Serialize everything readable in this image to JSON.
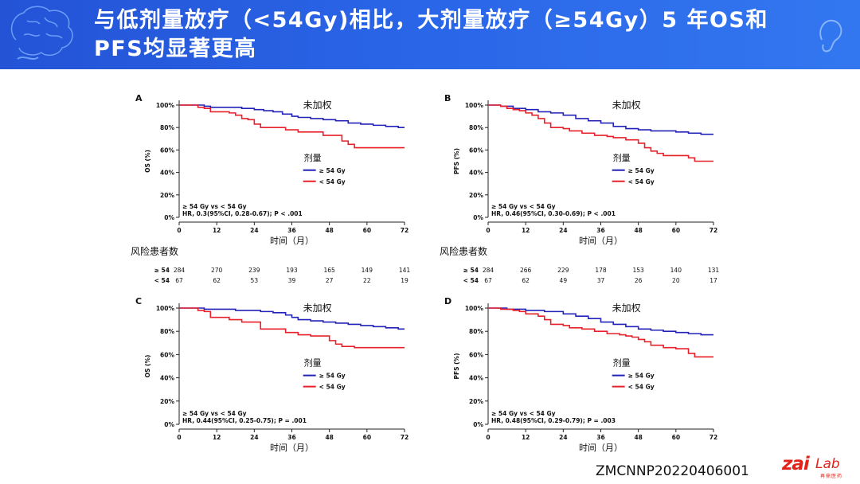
{
  "header": {
    "title_line1": "与低剂量放疗（<54Gy)相比，大剂量放疗（≥54Gy）5 年OS和",
    "title_line2": "PFS均显著更高"
  },
  "footer": {
    "code": "ZMCNNP20220406001",
    "logo_main": "zai",
    "logo_lab": "Lab",
    "logo_sub": "再鼎医药"
  },
  "colors": {
    "high_dose": "#2222b8",
    "low_dose": "#e8202a",
    "header_bg": "#2a5fe0"
  },
  "chart_data": [
    {
      "type": "line",
      "panel_label": "A",
      "weighting": "未加权",
      "ylabel": "OS (%)",
      "xlabel": "时间（月）",
      "yticks": [
        "0%",
        "20%",
        "40%",
        "60%",
        "80%",
        "100%"
      ],
      "xticks": [
        "0",
        "12",
        "24",
        "36",
        "48",
        "60",
        "72"
      ],
      "xlim": [
        0,
        72
      ],
      "ylim": [
        0,
        100
      ],
      "legend_title": "剂量",
      "series": [
        {
          "name": "≥ 54 Gy",
          "x": [
            0,
            5,
            8,
            10,
            14,
            20,
            24,
            27,
            30,
            33,
            36,
            38,
            42,
            46,
            50,
            54,
            58,
            62,
            66,
            70,
            72
          ],
          "y": [
            100,
            100,
            99,
            98,
            98,
            97,
            96,
            95,
            94,
            92,
            90,
            89,
            88,
            87,
            86,
            84,
            83,
            82,
            81,
            80,
            80
          ]
        },
        {
          "name": "< 54 Gy",
          "x": [
            0,
            4,
            6,
            8,
            10,
            12,
            16,
            18,
            20,
            22,
            24,
            26,
            30,
            34,
            38,
            42,
            46,
            48,
            50,
            52,
            54,
            56,
            60,
            72
          ],
          "y": [
            100,
            100,
            98,
            97,
            94,
            94,
            93,
            91,
            88,
            87,
            83,
            80,
            80,
            78,
            76,
            76,
            73,
            73,
            73,
            68,
            65,
            62,
            62,
            62
          ]
        }
      ],
      "annotation_line1": "≥ 54 Gy vs < 54 Gy",
      "annotation_line2": "HR, 0.3(95%CI, 0.28-0.67); P < .001",
      "risk_table": {
        "title": "风险患者数",
        "rows": [
          {
            "label": "≥ 54",
            "values": [
              "284",
              "270",
              "239",
              "193",
              "165",
              "149",
              "141"
            ]
          },
          {
            "label": "< 54",
            "values": [
              "67",
              "62",
              "53",
              "39",
              "27",
              "22",
              "19"
            ]
          }
        ]
      }
    },
    {
      "type": "line",
      "panel_label": "B",
      "weighting": "未加权",
      "ylabel": "PFS (%)",
      "xlabel": "时间（月）",
      "yticks": [
        "0%",
        "20%",
        "40%",
        "60%",
        "80%",
        "100%"
      ],
      "xticks": [
        "0",
        "12",
        "24",
        "36",
        "48",
        "60",
        "72"
      ],
      "xlim": [
        0,
        72
      ],
      "ylim": [
        0,
        100
      ],
      "legend_title": "剂量",
      "series": [
        {
          "name": "≥ 54 Gy",
          "x": [
            0,
            4,
            8,
            12,
            16,
            20,
            24,
            28,
            32,
            36,
            40,
            44,
            48,
            52,
            56,
            60,
            64,
            68,
            72
          ],
          "y": [
            100,
            99,
            97,
            96,
            94,
            93,
            91,
            88,
            86,
            84,
            81,
            79,
            78,
            77,
            77,
            76,
            75,
            74,
            74
          ]
        },
        {
          "name": "< 54 Gy",
          "x": [
            0,
            4,
            6,
            8,
            10,
            12,
            14,
            16,
            18,
            20,
            24,
            26,
            30,
            34,
            38,
            40,
            44,
            48,
            50,
            52,
            54,
            56,
            60,
            64,
            66,
            72
          ],
          "y": [
            100,
            99,
            97,
            96,
            95,
            93,
            91,
            88,
            84,
            80,
            79,
            77,
            75,
            73,
            72,
            71,
            69,
            66,
            62,
            59,
            57,
            55,
            55,
            53,
            50,
            50
          ]
        }
      ],
      "annotation_line1": "≥ 54 Gy vs < 54 Gy",
      "annotation_line2": "HR, 0.46(95%CI, 0.30-0.69); P < .001",
      "risk_table": {
        "title": "风险患者数",
        "rows": [
          {
            "label": "≥ 54",
            "values": [
              "284",
              "266",
              "229",
              "178",
              "153",
              "140",
              "131"
            ]
          },
          {
            "label": "< 54",
            "values": [
              "67",
              "62",
              "49",
              "37",
              "26",
              "20",
              "17"
            ]
          }
        ]
      }
    },
    {
      "type": "line",
      "panel_label": "C",
      "weighting": "未加权",
      "ylabel": "OS (%)",
      "xlabel": "时间（月）",
      "yticks": [
        "0%",
        "20%",
        "40%",
        "60%",
        "80%",
        "100%"
      ],
      "xticks": [
        "0",
        "12",
        "24",
        "36",
        "48",
        "60",
        "72"
      ],
      "xlim": [
        0,
        72
      ],
      "ylim": [
        0,
        100
      ],
      "legend_title": "剂量",
      "series": [
        {
          "name": "≥ 54 Gy",
          "x": [
            0,
            5,
            8,
            12,
            18,
            22,
            26,
            30,
            34,
            36,
            38,
            42,
            46,
            50,
            54,
            58,
            62,
            66,
            70,
            72
          ],
          "y": [
            100,
            100,
            99,
            99,
            98,
            98,
            97,
            96,
            94,
            92,
            90,
            89,
            88,
            87,
            86,
            85,
            84,
            83,
            82,
            82
          ]
        },
        {
          "name": "< 54 Gy",
          "x": [
            0,
            4,
            6,
            8,
            10,
            14,
            16,
            20,
            24,
            26,
            30,
            34,
            38,
            42,
            44,
            46,
            48,
            50,
            52,
            56,
            60,
            72
          ],
          "y": [
            100,
            100,
            98,
            97,
            92,
            92,
            90,
            88,
            88,
            82,
            82,
            79,
            77,
            76,
            76,
            76,
            72,
            69,
            67,
            66,
            66,
            66
          ]
        }
      ],
      "annotation_line1": "≥ 54 Gy vs < 54 Gy",
      "annotation_line2": "HR, 0.44(95%CI, 0.25-0.75); P = .001"
    },
    {
      "type": "line",
      "panel_label": "D",
      "weighting": "未加权",
      "ylabel": "PFS (%)",
      "xlabel": "时间（月）",
      "yticks": [
        "0%",
        "20%",
        "40%",
        "60%",
        "80%",
        "100%"
      ],
      "xticks": [
        "0",
        "12",
        "24",
        "36",
        "48",
        "60",
        "72"
      ],
      "xlim": [
        0,
        72
      ],
      "ylim": [
        0,
        100
      ],
      "legend_title": "剂量",
      "series": [
        {
          "name": "≥ 54 Gy",
          "x": [
            0,
            6,
            12,
            18,
            24,
            28,
            32,
            36,
            40,
            44,
            48,
            52,
            56,
            60,
            64,
            68,
            72
          ],
          "y": [
            100,
            99,
            98,
            97,
            95,
            93,
            91,
            88,
            86,
            84,
            82,
            81,
            80,
            79,
            78,
            77,
            77
          ]
        },
        {
          "name": "< 54 Gy",
          "x": [
            0,
            4,
            8,
            10,
            12,
            16,
            18,
            20,
            24,
            26,
            30,
            34,
            38,
            42,
            44,
            46,
            48,
            50,
            52,
            56,
            60,
            64,
            66,
            72
          ],
          "y": [
            100,
            99,
            98,
            97,
            95,
            93,
            90,
            86,
            85,
            83,
            82,
            80,
            78,
            77,
            76,
            75,
            73,
            71,
            68,
            66,
            65,
            61,
            58,
            58
          ]
        }
      ],
      "annotation_line1": "≥ 54 Gy vs < 54 Gy",
      "annotation_line2": "HR, 0.48(95%CI, 0.29-0.79); P = .003"
    }
  ]
}
